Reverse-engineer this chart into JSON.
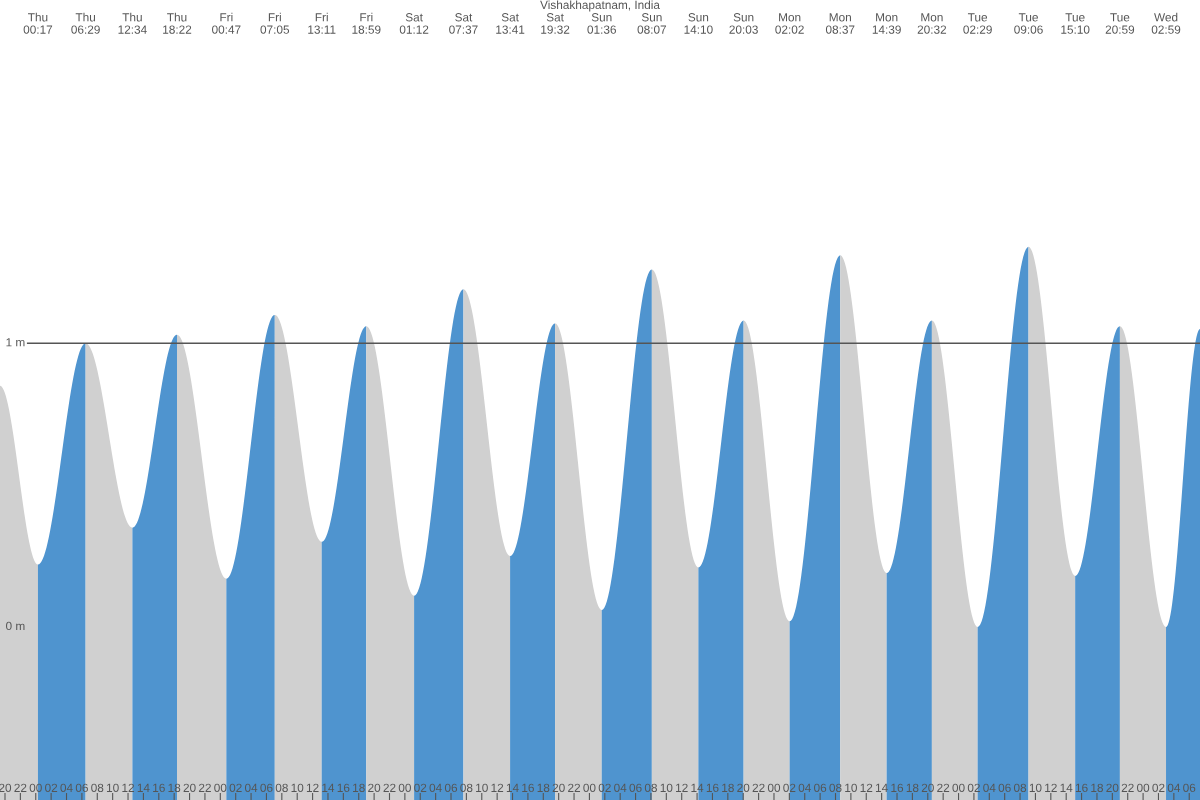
{
  "chart_data": {
    "type": "area",
    "title": "Vishakhapatnam, India",
    "series": [
      {
        "color": "#d0d0d0",
        "x": [
          19.35,
          24.283
        ],
        "values": [
          0.85,
          0.22
        ]
      },
      {
        "color": "#4f94cf",
        "x": [
          24.283,
          30.483
        ],
        "values": [
          0.22,
          1.0
        ]
      },
      {
        "color": "#d0d0d0",
        "x": [
          30.483,
          36.567
        ],
        "values": [
          1.0,
          0.35
        ]
      },
      {
        "color": "#4f94cf",
        "x": [
          36.567,
          42.367
        ],
        "values": [
          0.35,
          1.03
        ]
      },
      {
        "color": "#d0d0d0",
        "x": [
          42.367,
          48.783
        ],
        "values": [
          1.03,
          0.17
        ]
      },
      {
        "color": "#4f94cf",
        "x": [
          48.783,
          55.083
        ],
        "values": [
          0.17,
          1.1
        ]
      },
      {
        "color": "#d0d0d0",
        "x": [
          55.083,
          61.183
        ],
        "values": [
          1.1,
          0.3
        ]
      },
      {
        "color": "#4f94cf",
        "x": [
          61.183,
          66.983
        ],
        "values": [
          0.3,
          1.06
        ]
      },
      {
        "color": "#d0d0d0",
        "x": [
          66.983,
          73.2
        ],
        "values": [
          1.06,
          0.11
        ]
      },
      {
        "color": "#4f94cf",
        "x": [
          73.2,
          79.617
        ],
        "values": [
          0.11,
          1.19
        ]
      },
      {
        "color": "#d0d0d0",
        "x": [
          79.617,
          85.683
        ],
        "values": [
          1.19,
          0.25
        ]
      },
      {
        "color": "#4f94cf",
        "x": [
          85.683,
          91.533
        ],
        "values": [
          0.25,
          1.07
        ]
      },
      {
        "color": "#d0d0d0",
        "x": [
          91.533,
          97.6
        ],
        "values": [
          1.07,
          0.06
        ]
      },
      {
        "color": "#4f94cf",
        "x": [
          97.6,
          104.117
        ],
        "values": [
          0.06,
          1.26
        ]
      },
      {
        "color": "#d0d0d0",
        "x": [
          104.117,
          110.167
        ],
        "values": [
          1.26,
          0.21
        ]
      },
      {
        "color": "#4f94cf",
        "x": [
          110.167,
          116.05
        ],
        "values": [
          0.21,
          1.08
        ]
      },
      {
        "color": "#d0d0d0",
        "x": [
          116.05,
          122.033
        ],
        "values": [
          1.08,
          0.02
        ]
      },
      {
        "color": "#4f94cf",
        "x": [
          122.033,
          128.617
        ],
        "values": [
          0.02,
          1.31
        ]
      },
      {
        "color": "#d0d0d0",
        "x": [
          128.617,
          134.65
        ],
        "values": [
          1.31,
          0.19
        ]
      },
      {
        "color": "#4f94cf",
        "x": [
          134.65,
          140.533
        ],
        "values": [
          0.19,
          1.08
        ]
      },
      {
        "color": "#d0d0d0",
        "x": [
          140.533,
          146.483
        ],
        "values": [
          1.08,
          0.0
        ]
      },
      {
        "color": "#4f94cf",
        "x": [
          146.483,
          153.1
        ],
        "values": [
          0.0,
          1.34
        ]
      },
      {
        "color": "#d0d0d0",
        "x": [
          153.1,
          159.167
        ],
        "values": [
          1.34,
          0.18
        ]
      },
      {
        "color": "#4f94cf",
        "x": [
          159.167,
          164.983
        ],
        "values": [
          0.18,
          1.06
        ]
      },
      {
        "color": "#d0d0d0",
        "x": [
          164.983,
          170.983
        ],
        "values": [
          1.06,
          0.0
        ]
      },
      {
        "color": "#4f94cf",
        "x": [
          170.983,
          175.4
        ],
        "values": [
          0.0,
          1.05
        ]
      }
    ],
    "xlim": [
      19.35,
      175.4
    ],
    "ylim": [
      -0.61,
      2.21
    ],
    "yticks": [
      {
        "value": 0,
        "label": "0 m"
      },
      {
        "value": 1,
        "label": "1 m"
      }
    ],
    "xticks": [
      {
        "value": 20,
        "label": "20"
      },
      {
        "value": 22,
        "label": "22"
      },
      {
        "value": 24,
        "label": "00"
      },
      {
        "value": 26,
        "label": "02"
      },
      {
        "value": 28,
        "label": "04"
      },
      {
        "value": 30,
        "label": "06"
      },
      {
        "value": 32,
        "label": "08"
      },
      {
        "value": 34,
        "label": "10"
      },
      {
        "value": 36,
        "label": "12"
      },
      {
        "value": 38,
        "label": "14"
      },
      {
        "value": 40,
        "label": "16"
      },
      {
        "value": 42,
        "label": "18"
      },
      {
        "value": 44,
        "label": "20"
      },
      {
        "value": 46,
        "label": "22"
      },
      {
        "value": 48,
        "label": "00"
      },
      {
        "value": 50,
        "label": "02"
      },
      {
        "value": 52,
        "label": "04"
      },
      {
        "value": 54,
        "label": "06"
      },
      {
        "value": 56,
        "label": "08"
      },
      {
        "value": 58,
        "label": "10"
      },
      {
        "value": 60,
        "label": "12"
      },
      {
        "value": 62,
        "label": "14"
      },
      {
        "value": 64,
        "label": "16"
      },
      {
        "value": 66,
        "label": "18"
      },
      {
        "value": 68,
        "label": "20"
      },
      {
        "value": 70,
        "label": "22"
      },
      {
        "value": 72,
        "label": "00"
      },
      {
        "value": 74,
        "label": "02"
      },
      {
        "value": 76,
        "label": "04"
      },
      {
        "value": 78,
        "label": "06"
      },
      {
        "value": 80,
        "label": "08"
      },
      {
        "value": 82,
        "label": "10"
      },
      {
        "value": 84,
        "label": "12"
      },
      {
        "value": 86,
        "label": "14"
      },
      {
        "value": 88,
        "label": "16"
      },
      {
        "value": 90,
        "label": "18"
      },
      {
        "value": 92,
        "label": "20"
      },
      {
        "value": 94,
        "label": "22"
      },
      {
        "value": 96,
        "label": "00"
      },
      {
        "value": 98,
        "label": "02"
      },
      {
        "value": 100,
        "label": "04"
      },
      {
        "value": 102,
        "label": "06"
      },
      {
        "value": 104,
        "label": "08"
      },
      {
        "value": 106,
        "label": "10"
      },
      {
        "value": 108,
        "label": "12"
      },
      {
        "value": 110,
        "label": "14"
      },
      {
        "value": 112,
        "label": "16"
      },
      {
        "value": 114,
        "label": "18"
      },
      {
        "value": 116,
        "label": "20"
      },
      {
        "value": 118,
        "label": "22"
      },
      {
        "value": 120,
        "label": "00"
      },
      {
        "value": 122,
        "label": "02"
      },
      {
        "value": 124,
        "label": "04"
      },
      {
        "value": 126,
        "label": "06"
      },
      {
        "value": 128,
        "label": "08"
      },
      {
        "value": 130,
        "label": "10"
      },
      {
        "value": 132,
        "label": "12"
      },
      {
        "value": 134,
        "label": "14"
      },
      {
        "value": 136,
        "label": "16"
      },
      {
        "value": 138,
        "label": "18"
      },
      {
        "value": 140,
        "label": "20"
      },
      {
        "value": 142,
        "label": "22"
      },
      {
        "value": 144,
        "label": "00"
      },
      {
        "value": 146,
        "label": "02"
      },
      {
        "value": 148,
        "label": "04"
      },
      {
        "value": 150,
        "label": "06"
      },
      {
        "value": 152,
        "label": "08"
      },
      {
        "value": 154,
        "label": "10"
      },
      {
        "value": 156,
        "label": "12"
      },
      {
        "value": 158,
        "label": "14"
      },
      {
        "value": 160,
        "label": "16"
      },
      {
        "value": 162,
        "label": "18"
      },
      {
        "value": 164,
        "label": "20"
      },
      {
        "value": 166,
        "label": "22"
      },
      {
        "value": 168,
        "label": "00"
      },
      {
        "value": 170,
        "label": "02"
      },
      {
        "value": 172,
        "label": "04"
      },
      {
        "value": 174,
        "label": "06"
      }
    ],
    "ref_lines": [
      {
        "axis": "y",
        "value": 1,
        "color": "#555555"
      }
    ],
    "annotations": [
      "Thu\n00:17",
      "Thu\n06:29",
      "Thu\n12:34",
      "Thu\n18:22",
      "Fri\n00:47",
      "Fri\n07:05",
      "Fri\n13:11",
      "Fri\n18:59",
      "Sat\n01:12",
      "Sat\n07:37",
      "Sat\n13:41",
      "Sat\n19:32",
      "Sun\n01:36",
      "Sun\n08:07",
      "Sun\n14:10",
      "Sun\n20:03",
      "Mon\n02:02",
      "Mon\n08:37",
      "Mon\n14:39",
      "Mon\n20:32",
      "Tue\n02:29",
      "Tue\n09:06",
      "Tue\n15:10",
      "Tue\n20:59",
      "Wed\n02:59"
    ]
  }
}
